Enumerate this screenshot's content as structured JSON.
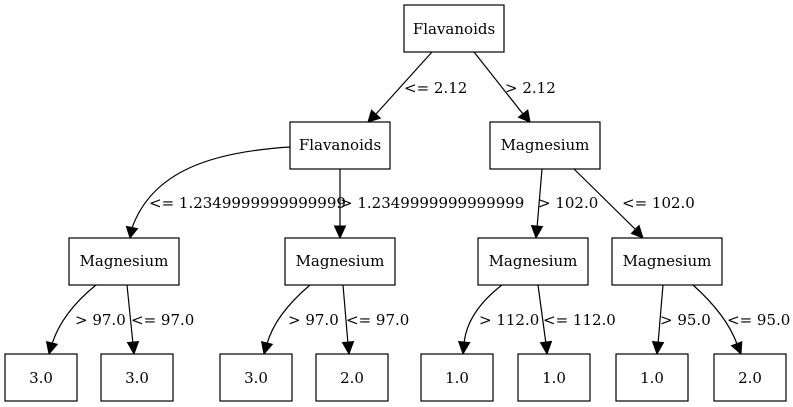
{
  "tree": {
    "root": {
      "label": "Flavanoids",
      "left": {
        "label": "Flavanoids",
        "edge_in": "<= 2.12",
        "left": {
          "label": "Magnesium",
          "edge_in": "<= 1.2349999999999999",
          "left": {
            "label": "3.0",
            "edge_in": "> 97.0"
          },
          "right": {
            "label": "3.0",
            "edge_in": "<= 97.0"
          }
        },
        "right": {
          "label": "Magnesium",
          "edge_in": "> 1.2349999999999999",
          "left": {
            "label": "3.0",
            "edge_in": "> 97.0"
          },
          "right": {
            "label": "2.0",
            "edge_in": "<= 97.0"
          }
        }
      },
      "right": {
        "label": "Magnesium",
        "edge_in": "> 2.12",
        "left": {
          "label": "Magnesium",
          "edge_in": "> 102.0",
          "left": {
            "label": "1.0",
            "edge_in": "> 112.0"
          },
          "right": {
            "label": "1.0",
            "edge_in": "<= 112.0"
          }
        },
        "right": {
          "label": "Magnesium",
          "edge_in": "<= 102.0",
          "left": {
            "label": "1.0",
            "edge_in": "> 95.0"
          },
          "right": {
            "label": "2.0",
            "edge_in": "<= 95.0"
          }
        }
      }
    }
  }
}
